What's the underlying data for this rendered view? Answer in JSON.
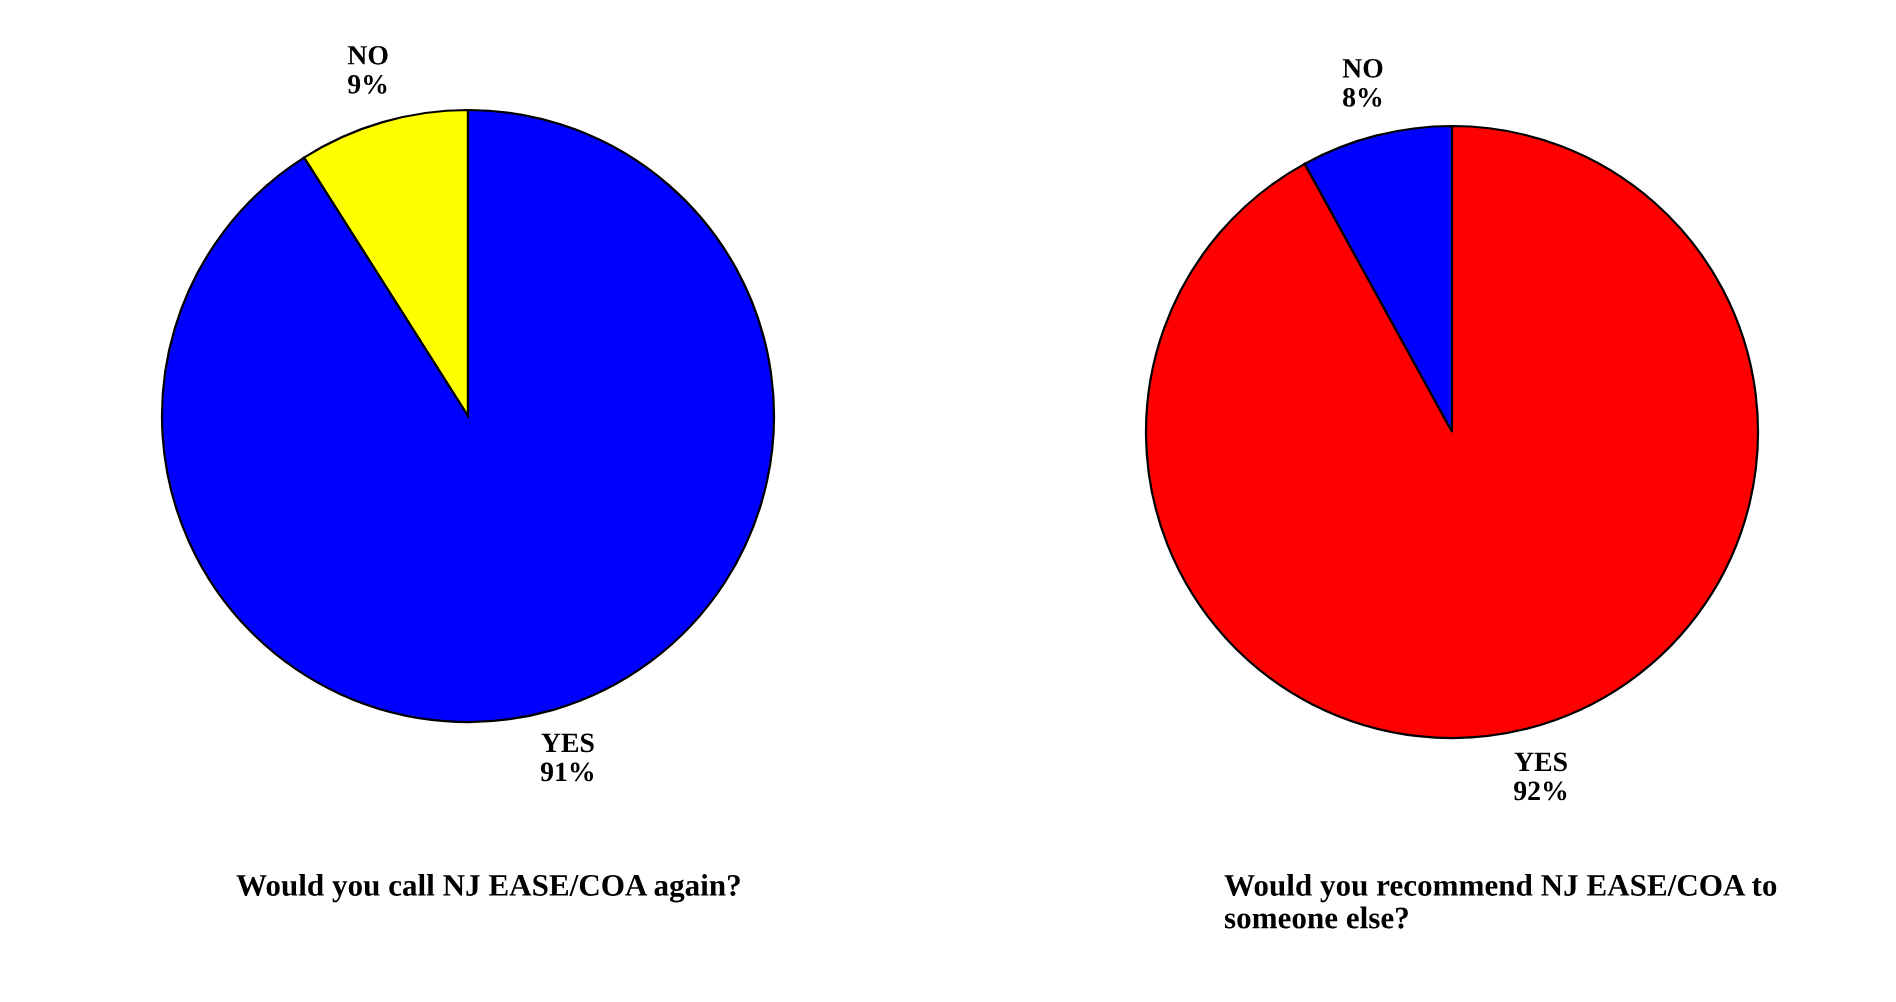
{
  "chart_data": [
    {
      "type": "pie",
      "title": "Would you call NJ EASE/COA again?",
      "categories": [
        "NO",
        "YES"
      ],
      "values": [
        9,
        91
      ],
      "value_labels": [
        "9%",
        "91%"
      ],
      "colors": [
        "#ffff00",
        "#0000ff"
      ],
      "data_labels": true,
      "legend": false
    },
    {
      "type": "pie",
      "title": "Would you recommend NJ EASE/COA to someone else?",
      "categories": [
        "NO",
        "YES"
      ],
      "values": [
        8,
        92
      ],
      "value_labels": [
        "8%",
        "92%"
      ],
      "colors": [
        "#0000ff",
        "#ff0000"
      ],
      "data_labels": true,
      "legend": false
    }
  ]
}
